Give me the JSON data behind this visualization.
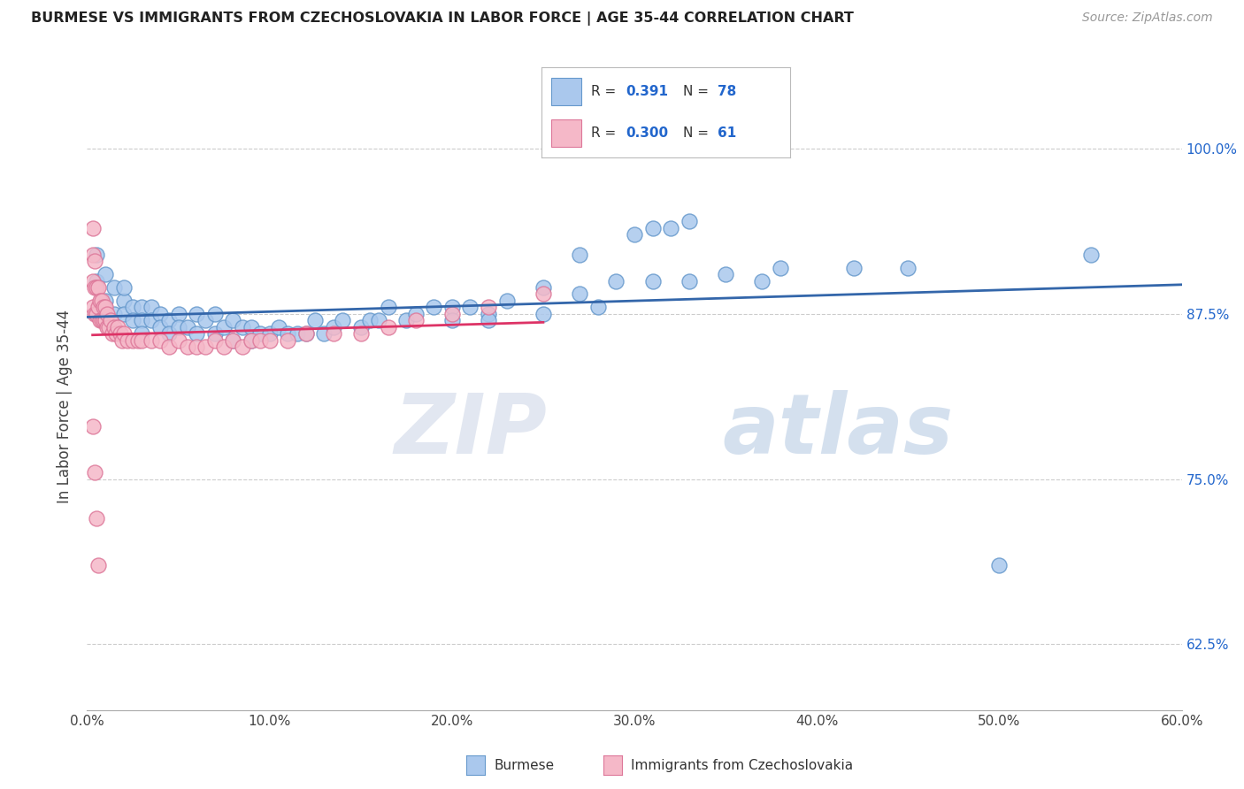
{
  "title": "BURMESE VS IMMIGRANTS FROM CZECHOSLOVAKIA IN LABOR FORCE | AGE 35-44 CORRELATION CHART",
  "source": "Source: ZipAtlas.com",
  "ylabel": "In Labor Force | Age 35-44",
  "xlim": [
    0.0,
    0.6
  ],
  "ylim": [
    0.575,
    1.035
  ],
  "xticks": [
    0.0,
    0.1,
    0.2,
    0.3,
    0.4,
    0.5,
    0.6
  ],
  "xticklabels": [
    "0.0%",
    "10.0%",
    "20.0%",
    "30.0%",
    "40.0%",
    "50.0%",
    "60.0%"
  ],
  "yticks": [
    0.625,
    0.75,
    0.875,
    1.0
  ],
  "yticklabels": [
    "62.5%",
    "75.0%",
    "87.5%",
    "100.0%"
  ],
  "blue_color": "#aac8ed",
  "pink_color": "#f5b8c8",
  "blue_edge": "#6699cc",
  "pink_edge": "#dd7799",
  "line_blue": "#3366aa",
  "line_pink": "#dd3366",
  "legend_r_blue": "0.391",
  "legend_n_blue": "78",
  "legend_r_pink": "0.300",
  "legend_n_pink": "61",
  "label_blue": "Burmese",
  "label_pink": "Immigrants from Czechoslovakia",
  "watermark": "ZIPatlas",
  "blue_x": [
    0.005,
    0.005,
    0.005,
    0.01,
    0.01,
    0.01,
    0.015,
    0.015,
    0.02,
    0.02,
    0.02,
    0.025,
    0.025,
    0.03,
    0.03,
    0.03,
    0.035,
    0.035,
    0.04,
    0.04,
    0.045,
    0.045,
    0.05,
    0.05,
    0.055,
    0.06,
    0.06,
    0.065,
    0.07,
    0.07,
    0.075,
    0.08,
    0.08,
    0.085,
    0.09,
    0.09,
    0.095,
    0.1,
    0.105,
    0.11,
    0.115,
    0.12,
    0.125,
    0.13,
    0.135,
    0.14,
    0.15,
    0.155,
    0.16,
    0.165,
    0.175,
    0.18,
    0.19,
    0.2,
    0.21,
    0.22,
    0.23,
    0.25,
    0.27,
    0.29,
    0.31,
    0.33,
    0.35,
    0.37,
    0.27,
    0.3,
    0.31,
    0.32,
    0.33,
    0.2,
    0.22,
    0.25,
    0.28,
    0.38,
    0.42,
    0.45,
    0.5,
    0.55
  ],
  "blue_y": [
    0.9,
    0.92,
    0.875,
    0.885,
    0.905,
    0.87,
    0.895,
    0.875,
    0.885,
    0.875,
    0.895,
    0.88,
    0.87,
    0.88,
    0.87,
    0.86,
    0.88,
    0.87,
    0.875,
    0.865,
    0.87,
    0.86,
    0.875,
    0.865,
    0.865,
    0.875,
    0.86,
    0.87,
    0.875,
    0.86,
    0.865,
    0.87,
    0.855,
    0.865,
    0.865,
    0.855,
    0.86,
    0.86,
    0.865,
    0.86,
    0.86,
    0.86,
    0.87,
    0.86,
    0.865,
    0.87,
    0.865,
    0.87,
    0.87,
    0.88,
    0.87,
    0.875,
    0.88,
    0.88,
    0.88,
    0.875,
    0.885,
    0.895,
    0.89,
    0.9,
    0.9,
    0.9,
    0.905,
    0.9,
    0.92,
    0.935,
    0.94,
    0.94,
    0.945,
    0.87,
    0.87,
    0.875,
    0.88,
    0.91,
    0.91,
    0.91,
    0.685,
    0.92
  ],
  "pink_x": [
    0.003,
    0.003,
    0.003,
    0.003,
    0.004,
    0.004,
    0.004,
    0.005,
    0.005,
    0.006,
    0.006,
    0.007,
    0.007,
    0.008,
    0.008,
    0.009,
    0.009,
    0.01,
    0.01,
    0.011,
    0.011,
    0.012,
    0.013,
    0.014,
    0.015,
    0.016,
    0.017,
    0.018,
    0.019,
    0.02,
    0.022,
    0.025,
    0.028,
    0.03,
    0.035,
    0.04,
    0.045,
    0.05,
    0.055,
    0.06,
    0.065,
    0.07,
    0.075,
    0.08,
    0.085,
    0.09,
    0.095,
    0.1,
    0.11,
    0.12,
    0.135,
    0.15,
    0.165,
    0.18,
    0.2,
    0.22,
    0.25,
    0.003,
    0.004,
    0.005,
    0.006
  ],
  "pink_y": [
    0.88,
    0.9,
    0.92,
    0.94,
    0.875,
    0.895,
    0.915,
    0.875,
    0.895,
    0.88,
    0.895,
    0.87,
    0.885,
    0.87,
    0.885,
    0.87,
    0.88,
    0.87,
    0.88,
    0.865,
    0.875,
    0.865,
    0.87,
    0.86,
    0.865,
    0.86,
    0.865,
    0.86,
    0.855,
    0.86,
    0.855,
    0.855,
    0.855,
    0.855,
    0.855,
    0.855,
    0.85,
    0.855,
    0.85,
    0.85,
    0.85,
    0.855,
    0.85,
    0.855,
    0.85,
    0.855,
    0.855,
    0.855,
    0.855,
    0.86,
    0.86,
    0.86,
    0.865,
    0.87,
    0.875,
    0.88,
    0.89,
    0.79,
    0.755,
    0.72,
    0.685
  ],
  "pink_line_x": [
    0.003,
    0.25
  ],
  "blue_line_x": [
    0.0,
    0.6
  ]
}
